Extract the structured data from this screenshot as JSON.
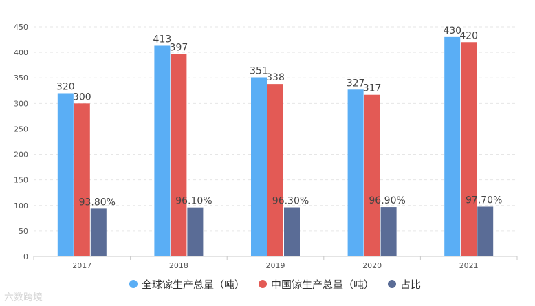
{
  "chart_data": {
    "type": "bar",
    "categories": [
      "2017",
      "2018",
      "2019",
      "2020",
      "2021"
    ],
    "series": [
      {
        "name": "全球镓生产总量（吨）",
        "values": [
          320,
          413,
          351,
          327,
          430
        ],
        "labels": [
          "320",
          "413",
          "351",
          "327",
          "430"
        ],
        "color": "#5AAEF5"
      },
      {
        "name": "中国镓生产总量（吨）",
        "values": [
          300,
          397,
          338,
          317,
          420
        ],
        "labels": [
          "300",
          "397",
          "338",
          "317",
          "420"
        ],
        "color": "#E35A55"
      },
      {
        "name": "占比",
        "values": [
          93.8,
          96.1,
          96.3,
          96.9,
          97.7
        ],
        "labels": [
          "93.80%",
          "96.10%",
          "96.30%",
          "96.90%",
          "97.70%"
        ],
        "color": "#5A6C96"
      }
    ],
    "ylim": [
      0,
      450
    ],
    "yticks": [
      "0",
      "50",
      "100",
      "150",
      "200",
      "250",
      "300",
      "350",
      "400",
      "450"
    ],
    "grid": true,
    "legend_position": "bottom"
  },
  "watermark": "六数跨境"
}
